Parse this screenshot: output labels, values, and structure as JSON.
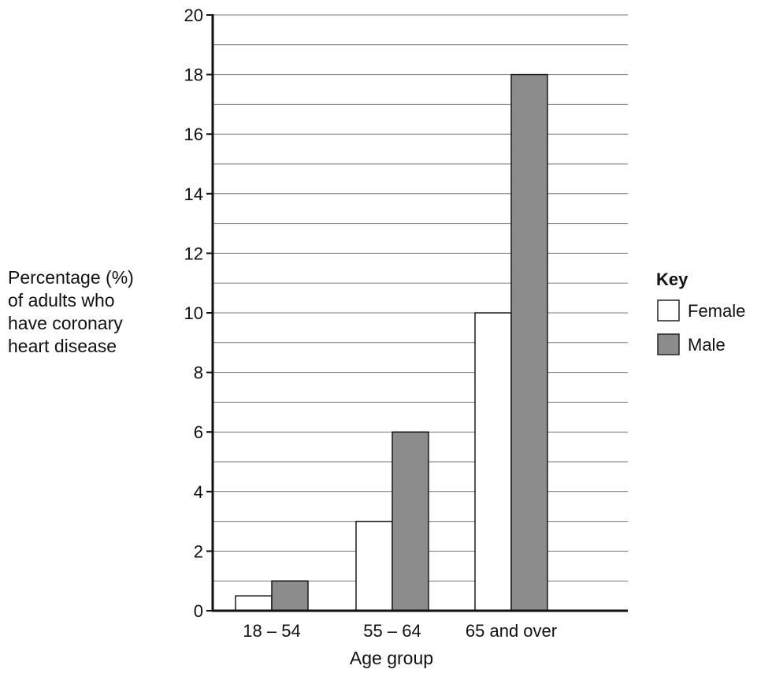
{
  "chart_data": {
    "type": "bar",
    "categories": [
      "18 – 54",
      "55 – 64",
      "65 and over"
    ],
    "series": [
      {
        "name": "Female",
        "values": [
          0.5,
          3,
          10
        ],
        "color": "#ffffff"
      },
      {
        "name": "Male",
        "values": [
          1,
          6,
          18
        ],
        "color": "#8c8c8c"
      }
    ],
    "xlabel": "Age group",
    "ylabel_lines": [
      "Percentage (%)",
      "of adults who",
      "have coronary",
      "heart disease"
    ],
    "ylim": [
      0,
      20
    ],
    "y_ticks": [
      0,
      2,
      4,
      6,
      8,
      10,
      12,
      14,
      16,
      18,
      20
    ],
    "minor_grid_step": 1,
    "grid": true,
    "legend": {
      "title": "Key",
      "placement": "right"
    }
  }
}
